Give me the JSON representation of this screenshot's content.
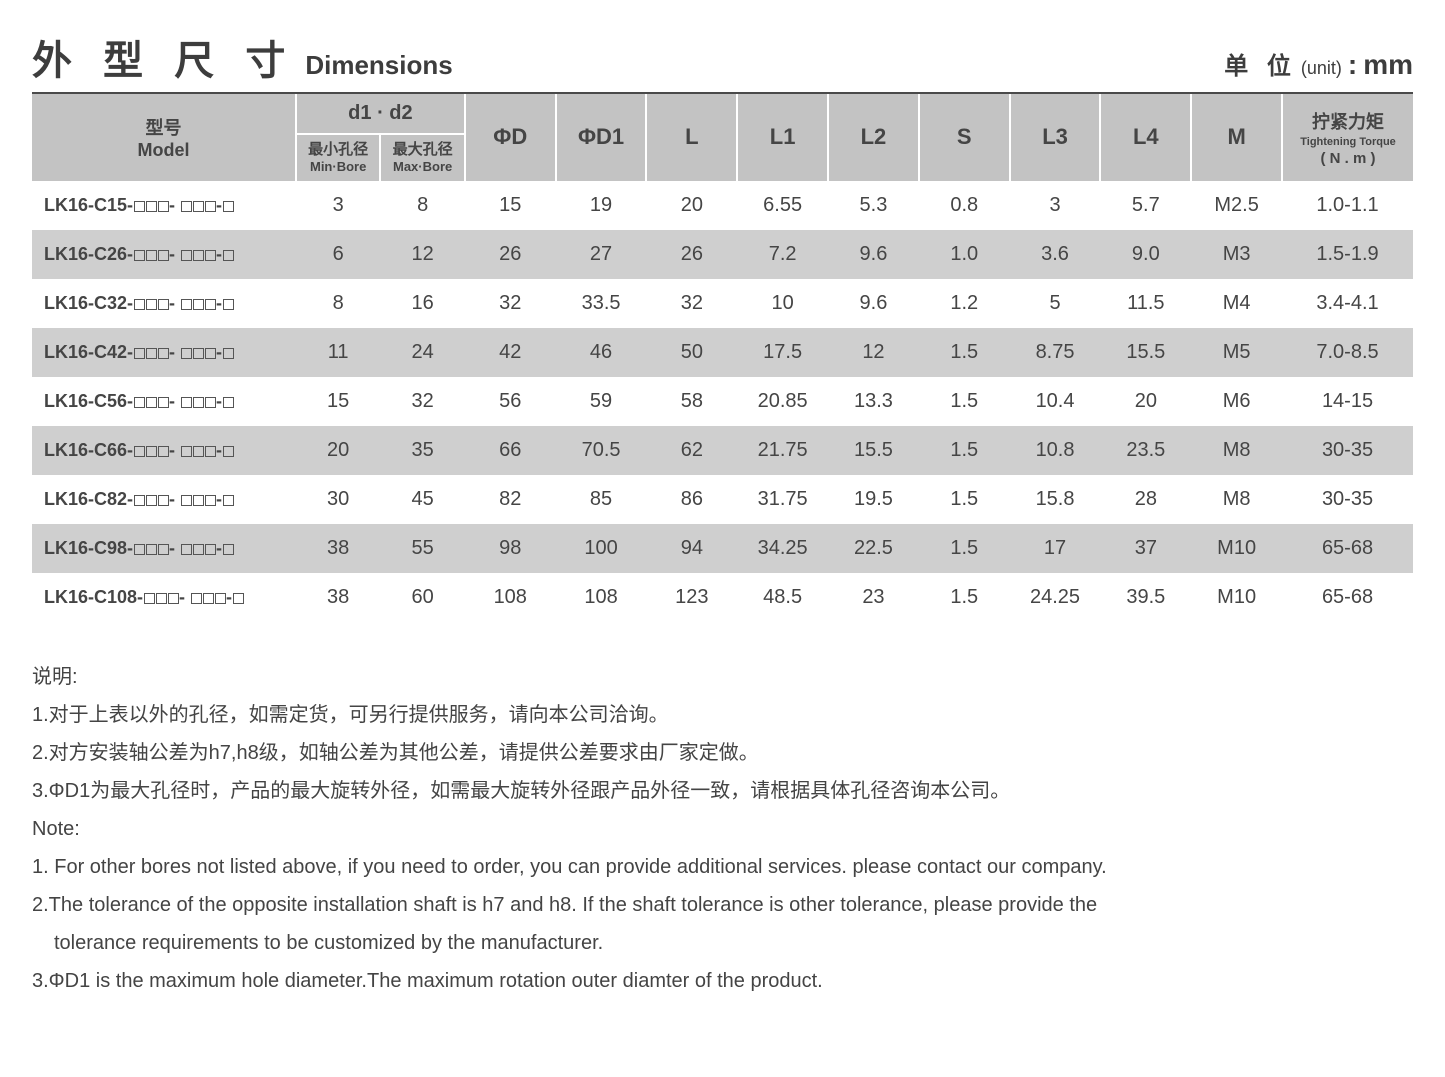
{
  "header": {
    "title_cn": "外 型 尺 寸",
    "title_en": "Dimensions",
    "unit_cn": "单 位",
    "unit_paren": "(unit)",
    "unit_colon": ":",
    "unit_value": "mm"
  },
  "table": {
    "columns": {
      "model_cn": "型号",
      "model_en": "Model",
      "d1d2": "d1 · d2",
      "min_bore_cn": "最小孔径",
      "min_bore_en": "Min·Bore",
      "max_bore_cn": "最大孔径",
      "max_bore_en": "Max·Bore",
      "phiD": "ΦD",
      "phiD1": "ΦD1",
      "L": "L",
      "L1": "L1",
      "L2": "L2",
      "S": "S",
      "L3": "L3",
      "L4": "L4",
      "M": "M",
      "torque_cn": "拧紧力矩",
      "torque_en1": "Tightening Torque",
      "torque_en2": "( N . m )"
    },
    "rows": [
      {
        "model_prefix": "LK16-C15-",
        "min_bore": "3",
        "max_bore": "8",
        "phiD": "15",
        "phiD1": "19",
        "L": "20",
        "L1": "6.55",
        "L2": "5.3",
        "S": "0.8",
        "L3": "3",
        "L4": "5.7",
        "M": "M2.5",
        "torque": "1.0-1.1"
      },
      {
        "model_prefix": "LK16-C26-",
        "min_bore": "6",
        "max_bore": "12",
        "phiD": "26",
        "phiD1": "27",
        "L": "26",
        "L1": "7.2",
        "L2": "9.6",
        "S": "1.0",
        "L3": "3.6",
        "L4": "9.0",
        "M": "M3",
        "torque": "1.5-1.9"
      },
      {
        "model_prefix": "LK16-C32-",
        "min_bore": "8",
        "max_bore": "16",
        "phiD": "32",
        "phiD1": "33.5",
        "L": "32",
        "L1": "10",
        "L2": "9.6",
        "S": "1.2",
        "L3": "5",
        "L4": "11.5",
        "M": "M4",
        "torque": "3.4-4.1"
      },
      {
        "model_prefix": "LK16-C42-",
        "min_bore": "11",
        "max_bore": "24",
        "phiD": "42",
        "phiD1": "46",
        "L": "50",
        "L1": "17.5",
        "L2": "12",
        "S": "1.5",
        "L3": "8.75",
        "L4": "15.5",
        "M": "M5",
        "torque": "7.0-8.5"
      },
      {
        "model_prefix": "LK16-C56-",
        "min_bore": "15",
        "max_bore": "32",
        "phiD": "56",
        "phiD1": "59",
        "L": "58",
        "L1": "20.85",
        "L2": "13.3",
        "S": "1.5",
        "L3": "10.4",
        "L4": "20",
        "M": "M6",
        "torque": "14-15"
      },
      {
        "model_prefix": "LK16-C66-",
        "min_bore": "20",
        "max_bore": "35",
        "phiD": "66",
        "phiD1": "70.5",
        "L": "62",
        "L1": "21.75",
        "L2": "15.5",
        "S": "1.5",
        "L3": "10.8",
        "L4": "23.5",
        "M": "M8",
        "torque": "30-35"
      },
      {
        "model_prefix": "LK16-C82-",
        "min_bore": "30",
        "max_bore": "45",
        "phiD": "82",
        "phiD1": "85",
        "L": "86",
        "L1": "31.75",
        "L2": "19.5",
        "S": "1.5",
        "L3": "15.8",
        "L4": "28",
        "M": "M8",
        "torque": "30-35"
      },
      {
        "model_prefix": "LK16-C98-",
        "min_bore": "38",
        "max_bore": "55",
        "phiD": "98",
        "phiD1": "100",
        "L": "94",
        "L1": "34.25",
        "L2": "22.5",
        "S": "1.5",
        "L3": "17",
        "L4": "37",
        "M": "M10",
        "torque": "65-68"
      },
      {
        "model_prefix": "LK16-C108-",
        "min_bore": "38",
        "max_bore": "60",
        "phiD": "108",
        "phiD1": "108",
        "L": "123",
        "L1": "48.5",
        "L2": "23",
        "S": "1.5",
        "L3": "24.25",
        "L4": "39.5",
        "M": "M10",
        "torque": "65-68"
      }
    ],
    "model_dash": "- ",
    "model_dash2": "-"
  },
  "notes": {
    "heading_cn": "说明:",
    "cn1": "1.对于上表以外的孔径，如需定货，可另行提供服务，请向本公司洽询。",
    "cn2": "2.对方安装轴公差为h7,h8级，如轴公差为其他公差，请提供公差要求由厂家定做。",
    "cn3": "3.ΦD1为最大孔径时，产品的最大旋转外径，如需最大旋转外径跟产品外径一致，请根据具体孔径咨询本公司。",
    "heading_en": "Note:",
    "en1": "1. For other bores not listed above, if you need to order, you can provide additional services. please contact our company.",
    "en2a": "2.The tolerance of the opposite installation shaft is h7 and h8. If the shaft tolerance is other tolerance, please provide the",
    "en2b": "tolerance requirements to be customized by the manufacturer.",
    "en3": "3.ΦD1 is the maximum hole diameter.The maximum rotation outer diamter of the product."
  },
  "colors": {
    "header_bg": "#c3c3c3",
    "row_alt_bg": "#cfcfcf",
    "text": "#454545",
    "rule": "#4a4a4a",
    "page_bg": "#ffffff"
  }
}
